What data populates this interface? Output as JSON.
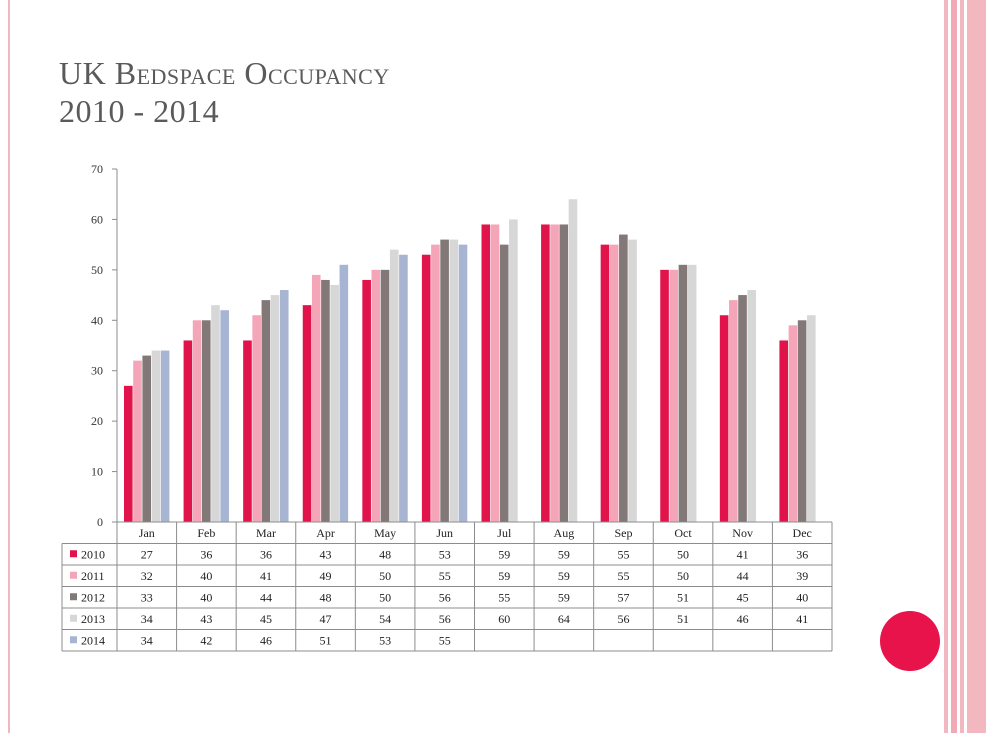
{
  "slide": {
    "title_line1": "UK Bedspace Occupancy",
    "title_line2": "2010 - 2014"
  },
  "chart_data": {
    "type": "bar",
    "title": "",
    "xlabel": "",
    "ylabel": "",
    "ylim": [
      0,
      70
    ],
    "yticks": [
      0,
      10,
      20,
      30,
      40,
      50,
      60,
      70
    ],
    "grid": false,
    "legend": "data-table",
    "categories": [
      "Jan",
      "Feb",
      "Mar",
      "Apr",
      "May",
      "Jun",
      "Jul",
      "Aug",
      "Sep",
      "Oct",
      "Nov",
      "Dec"
    ],
    "series": [
      {
        "name": "2010",
        "color": "#e0134a",
        "values": [
          27,
          36,
          36,
          43,
          48,
          53,
          59,
          59,
          55,
          50,
          41,
          36
        ]
      },
      {
        "name": "2011",
        "color": "#f4a6b8",
        "values": [
          32,
          40,
          41,
          49,
          50,
          55,
          59,
          59,
          55,
          50,
          44,
          39
        ]
      },
      {
        "name": "2012",
        "color": "#827878",
        "values": [
          33,
          40,
          44,
          48,
          50,
          56,
          55,
          59,
          57,
          51,
          45,
          40
        ]
      },
      {
        "name": "2013",
        "color": "#d7d7d7",
        "values": [
          34,
          43,
          45,
          47,
          54,
          56,
          60,
          64,
          56,
          51,
          46,
          41
        ]
      },
      {
        "name": "2014",
        "color": "#a7b5d3",
        "values": [
          34,
          42,
          46,
          51,
          53,
          55,
          null,
          null,
          null,
          null,
          null,
          null
        ]
      }
    ]
  }
}
